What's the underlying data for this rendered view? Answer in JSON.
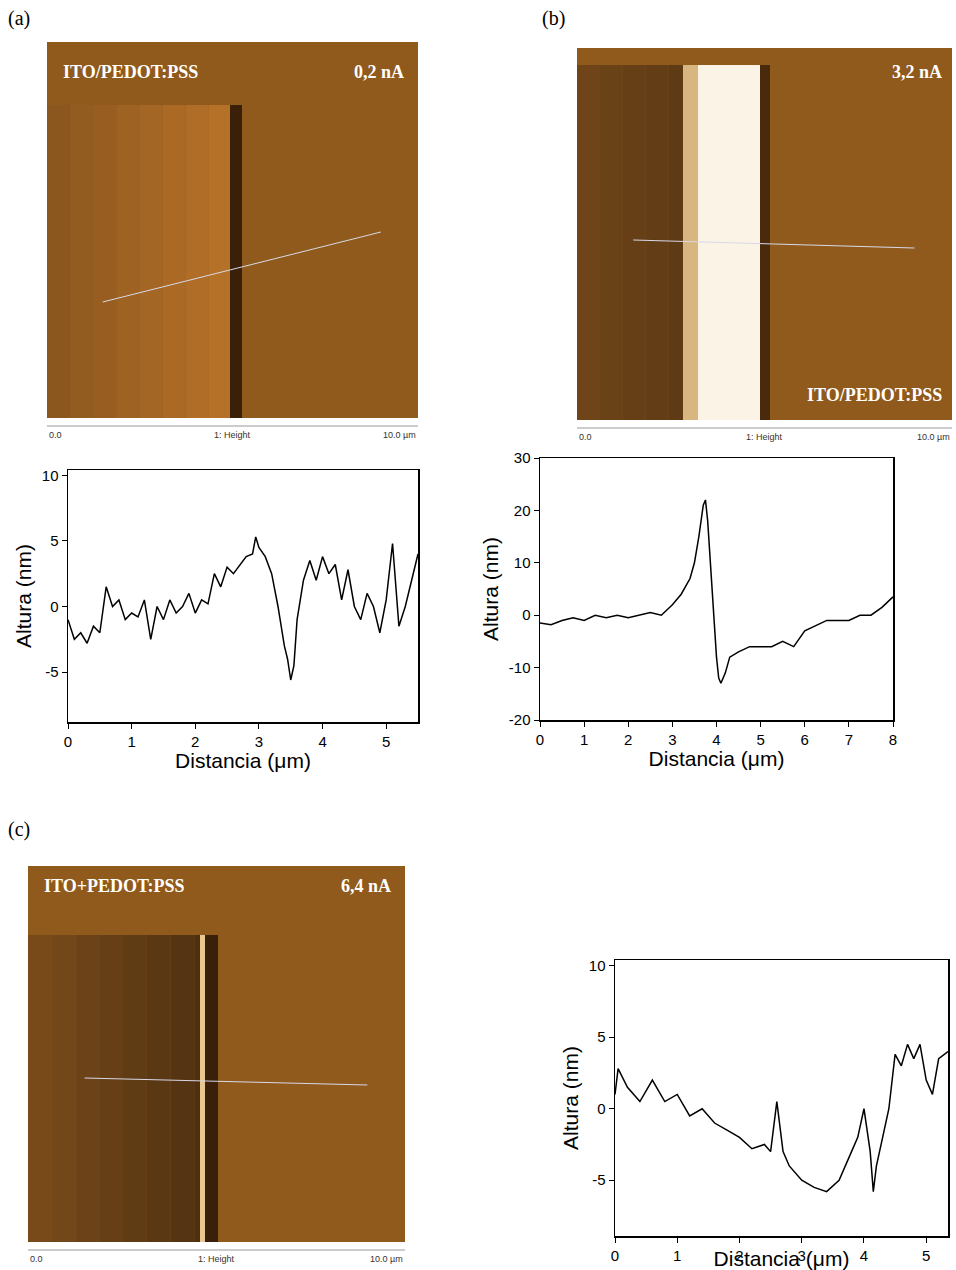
{
  "chart_data": [
    {
      "type": "line",
      "x_label": "Distancia (μm)",
      "y_label": "Altura (nm)",
      "color": "#000000",
      "xlim": [
        0,
        5.5
      ],
      "xticks": [
        0,
        1,
        2,
        3,
        4,
        5
      ],
      "ylim": [
        -8.8,
        10.4
      ],
      "yticks": [
        -5,
        0,
        5,
        10
      ],
      "grid": false,
      "x": [
        0,
        0.1,
        0.2,
        0.3,
        0.4,
        0.5,
        0.6,
        0.7,
        0.8,
        0.9,
        1.0,
        1.1,
        1.2,
        1.3,
        1.4,
        1.5,
        1.6,
        1.7,
        1.8,
        1.9,
        2.0,
        2.1,
        2.2,
        2.3,
        2.4,
        2.5,
        2.6,
        2.7,
        2.8,
        2.9,
        2.95,
        3.0,
        3.1,
        3.2,
        3.3,
        3.4,
        3.45,
        3.5,
        3.55,
        3.6,
        3.7,
        3.8,
        3.9,
        4.0,
        4.1,
        4.2,
        4.3,
        4.4,
        4.5,
        4.6,
        4.7,
        4.8,
        4.9,
        5.0,
        5.1,
        5.2,
        5.3,
        5.4,
        5.5
      ],
      "values": [
        -1,
        -2.5,
        -2,
        -2.8,
        -1.5,
        -2,
        1.5,
        0,
        0.5,
        -1,
        -0.5,
        -0.8,
        0.5,
        -2.5,
        0,
        -1,
        0.5,
        -0.5,
        0,
        1,
        -0.5,
        0.5,
        0.2,
        2.5,
        1.5,
        3,
        2.5,
        3.2,
        3.8,
        4,
        5.3,
        4.5,
        3.8,
        2.5,
        0,
        -3,
        -4,
        -5.6,
        -4.5,
        -1,
        2,
        3.5,
        2,
        3.8,
        2.5,
        3.2,
        0.5,
        2.8,
        0,
        -1,
        1,
        0,
        -2,
        0.5,
        4.8,
        -1.5,
        0,
        2,
        4
      ]
    },
    {
      "type": "line",
      "x_label": "Distancia (μm)",
      "y_label": "Altura (nm)",
      "color": "#000000",
      "xlim": [
        0,
        8
      ],
      "xticks": [
        0,
        1,
        2,
        3,
        4,
        5,
        6,
        7,
        8
      ],
      "ylim": [
        -20,
        30
      ],
      "yticks": [
        -20,
        -10,
        0,
        10,
        20,
        30
      ],
      "grid": false,
      "x": [
        0,
        0.25,
        0.5,
        0.75,
        1,
        1.25,
        1.5,
        1.75,
        2,
        2.25,
        2.5,
        2.75,
        3,
        3.2,
        3.4,
        3.5,
        3.6,
        3.7,
        3.75,
        3.8,
        3.9,
        4.0,
        4.05,
        4.1,
        4.2,
        4.3,
        4.5,
        4.75,
        5,
        5.25,
        5.5,
        5.75,
        6,
        6.25,
        6.5,
        6.75,
        7,
        7.25,
        7.5,
        7.75,
        8
      ],
      "values": [
        -1.5,
        -1.8,
        -1,
        -0.5,
        -1,
        0,
        -0.5,
        0,
        -0.5,
        0,
        0.5,
        0,
        2,
        4,
        7,
        10,
        15,
        21,
        22,
        18,
        5,
        -8,
        -12,
        -13,
        -11,
        -8,
        -7,
        -6,
        -6,
        -6,
        -5,
        -6,
        -3,
        -2,
        -1,
        -1,
        -1,
        0,
        0,
        1.5,
        3.5
      ]
    },
    {
      "type": "line",
      "x_label": "Distancia (μm)",
      "y_label": "Altura (nm)",
      "color": "#000000",
      "xlim": [
        0,
        5.35
      ],
      "xticks": [
        0,
        1,
        2,
        3,
        4,
        5
      ],
      "ylim": [
        -8.9,
        10.4
      ],
      "yticks": [
        -5,
        0,
        5,
        10
      ],
      "grid": false,
      "x": [
        0,
        0.05,
        0.2,
        0.4,
        0.6,
        0.8,
        1.0,
        1.2,
        1.4,
        1.6,
        1.8,
        2.0,
        2.2,
        2.4,
        2.5,
        2.6,
        2.7,
        2.8,
        3.0,
        3.2,
        3.4,
        3.6,
        3.8,
        3.9,
        4.0,
        4.1,
        4.15,
        4.2,
        4.3,
        4.4,
        4.5,
        4.6,
        4.7,
        4.8,
        4.9,
        5.0,
        5.1,
        5.2,
        5.35
      ],
      "values": [
        1,
        2.8,
        1.5,
        0.5,
        2,
        0.5,
        1,
        -0.5,
        0,
        -1,
        -1.5,
        -2,
        -2.8,
        -2.5,
        -3,
        0.5,
        -3,
        -4,
        -5,
        -5.5,
        -5.8,
        -5,
        -3,
        -2,
        0,
        -3,
        -5.8,
        -4,
        -2,
        0,
        3.8,
        3,
        4.5,
        3.5,
        4.5,
        2,
        1,
        3.5,
        4
      ]
    }
  ],
  "panels": [
    {
      "label": "(a)",
      "image": {
        "sample": "ITO/PEDOT:PSS",
        "current": "0,2 nA",
        "scale_start": "0.0",
        "scale_label": "1: Height",
        "scale_end": "10.0 µm"
      }
    },
    {
      "label": "(b)",
      "image": {
        "sample": "ITO/PEDOT:PSS",
        "current": "3,2 nA",
        "scale_start": "0.0",
        "scale_label": "1: Height",
        "scale_end": "10.0 µm"
      }
    },
    {
      "label": "(c)",
      "image": {
        "sample": "ITO+PEDOT:PSS",
        "current": "6,4 nA",
        "scale_start": "0.0",
        "scale_label": "1: Height",
        "scale_end": "10.0 µm"
      }
    }
  ]
}
